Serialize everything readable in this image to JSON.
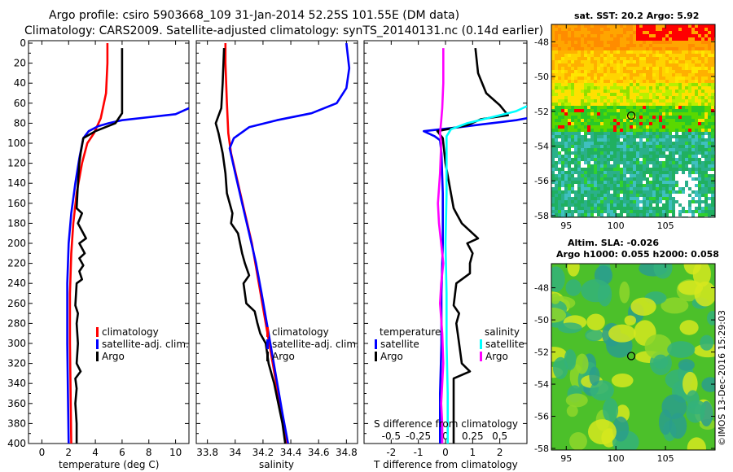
{
  "header": {
    "title_line1": "Argo profile: csiro 5903668_109 31-Jan-2014 52.25S 101.55E (DM data)",
    "title_line2": "Climatology: CARS2009. Satellite-adjusted climatology: synTS_20140131.nc (0.14d earlier)"
  },
  "depth_ticks": [
    "0",
    "20",
    "40",
    "60",
    "80",
    "100",
    "120",
    "140",
    "160",
    "180",
    "200",
    "220",
    "240",
    "260",
    "280",
    "300",
    "320",
    "340",
    "360",
    "380",
    "400"
  ],
  "colors": {
    "climatology": "#ff0000",
    "satellite": "#0000ff",
    "argo": "#000000",
    "sat_salinity": "#00ffff",
    "clim_salinity": "#ff00ff"
  },
  "chart_data": [
    {
      "type": "line",
      "name": "temperature-profile",
      "xlabel": "temperature (deg C)",
      "ylabel": "depth",
      "xlim": [
        -1,
        11
      ],
      "ylim": [
        400,
        0
      ],
      "x_ticks": [
        "0",
        "2",
        "4",
        "6",
        "8",
        "10"
      ],
      "x_tick_values": [
        0,
        2,
        4,
        6,
        8,
        10
      ],
      "legend": [
        "climatology",
        "satellite-adj. clim.",
        "Argo"
      ],
      "series": [
        {
          "name": "climatology",
          "color": "#ff0000",
          "points": [
            [
              4.9,
              0
            ],
            [
              4.9,
              20
            ],
            [
              4.8,
              50
            ],
            [
              4.4,
              75
            ],
            [
              3.9,
              90
            ],
            [
              3.4,
              100
            ],
            [
              3.0,
              120
            ],
            [
              2.6,
              150
            ],
            [
              2.35,
              180
            ],
            [
              2.2,
              210
            ],
            [
              2.1,
              250
            ],
            [
              2.1,
              300
            ],
            [
              2.15,
              350
            ],
            [
              2.2,
              400
            ]
          ]
        },
        {
          "name": "satellite-adj. clim.",
          "color": "#0000ff",
          "points": [
            [
              11,
              65
            ],
            [
              10,
              71
            ],
            [
              8,
              74
            ],
            [
              6,
              77
            ],
            [
              5,
              80
            ],
            [
              4.2,
              83
            ],
            [
              3.5,
              88
            ],
            [
              3.1,
              95
            ],
            [
              2.8,
              115
            ],
            [
              2.5,
              140
            ],
            [
              2.2,
              170
            ],
            [
              2.0,
              200
            ],
            [
              1.9,
              240
            ],
            [
              1.9,
              300
            ],
            [
              1.95,
              350
            ],
            [
              2.0,
              400
            ]
          ]
        },
        {
          "name": "Argo",
          "color": "#000000",
          "points": [
            [
              6.0,
              5
            ],
            [
              6.0,
              70
            ],
            [
              5.5,
              80
            ],
            [
              4.0,
              88
            ],
            [
              3.1,
              95
            ],
            [
              2.9,
              110
            ],
            [
              2.8,
              120
            ],
            [
              2.7,
              140
            ],
            [
              2.6,
              165
            ],
            [
              3.0,
              170
            ],
            [
              2.7,
              180
            ],
            [
              3.3,
              195
            ],
            [
              2.8,
              200
            ],
            [
              3.2,
              210
            ],
            [
              2.8,
              215
            ],
            [
              3.1,
              222
            ],
            [
              2.8,
              228
            ],
            [
              3.0,
              236
            ],
            [
              2.6,
              240
            ],
            [
              2.5,
              262
            ],
            [
              2.7,
              270
            ],
            [
              2.6,
              280
            ],
            [
              2.7,
              300
            ],
            [
              2.6,
              320
            ],
            [
              2.9,
              328
            ],
            [
              2.5,
              335
            ],
            [
              2.6,
              345
            ],
            [
              2.5,
              360
            ],
            [
              2.6,
              380
            ],
            [
              2.6,
              400
            ]
          ]
        }
      ]
    },
    {
      "type": "line",
      "name": "salinity-profile",
      "xlabel": "salinity",
      "ylabel": "depth",
      "xlim": [
        33.72,
        34.88
      ],
      "ylim": [
        400,
        0
      ],
      "x_ticks": [
        "33.8",
        "34",
        "34.2",
        "34.4",
        "34.6",
        "34.8"
      ],
      "x_tick_values": [
        33.8,
        34.0,
        34.2,
        34.4,
        34.6,
        34.8
      ],
      "legend": [
        "climatology",
        "satellite-adj. clim.",
        "Argo"
      ],
      "series": [
        {
          "name": "climatology",
          "color": "#ff0000",
          "points": [
            [
              33.93,
              0
            ],
            [
              33.93,
              20
            ],
            [
              33.94,
              60
            ],
            [
              33.95,
              90
            ],
            [
              33.97,
              110
            ],
            [
              34.02,
              140
            ],
            [
              34.07,
              170
            ],
            [
              34.12,
              200
            ],
            [
              34.17,
              240
            ],
            [
              34.22,
              280
            ],
            [
              34.27,
              320
            ],
            [
              34.32,
              360
            ],
            [
              34.37,
              400
            ]
          ]
        },
        {
          "name": "satellite-adj. clim.",
          "color": "#0000ff",
          "points": [
            [
              34.8,
              0
            ],
            [
              34.82,
              25
            ],
            [
              34.8,
              45
            ],
            [
              34.73,
              60
            ],
            [
              34.55,
              70
            ],
            [
              34.3,
              77
            ],
            [
              34.1,
              84
            ],
            [
              33.99,
              95
            ],
            [
              33.96,
              105
            ],
            [
              34.0,
              130
            ],
            [
              34.05,
              160
            ],
            [
              34.1,
              190
            ],
            [
              34.15,
              220
            ],
            [
              34.19,
              250
            ],
            [
              34.24,
              290
            ],
            [
              34.29,
              330
            ],
            [
              34.34,
              370
            ],
            [
              34.38,
              400
            ]
          ]
        },
        {
          "name": "Argo",
          "color": "#000000",
          "points": [
            [
              33.92,
              5
            ],
            [
              33.91,
              40
            ],
            [
              33.9,
              65
            ],
            [
              33.86,
              80
            ],
            [
              33.88,
              90
            ],
            [
              33.91,
              110
            ],
            [
              33.93,
              130
            ],
            [
              33.94,
              150
            ],
            [
              33.98,
              170
            ],
            [
              33.97,
              180
            ],
            [
              34.02,
              190
            ],
            [
              34.05,
              210
            ],
            [
              34.07,
              220
            ],
            [
              34.1,
              232
            ],
            [
              34.06,
              240
            ],
            [
              34.08,
              260
            ],
            [
              34.14,
              268
            ],
            [
              34.16,
              280
            ],
            [
              34.18,
              290
            ],
            [
              34.22,
              300
            ],
            [
              34.24,
              320
            ],
            [
              34.28,
              340
            ],
            [
              34.31,
              360
            ],
            [
              34.34,
              380
            ],
            [
              34.36,
              400
            ]
          ]
        }
      ]
    },
    {
      "type": "line",
      "name": "difference-profile",
      "xlabel": "T difference from climatology",
      "ylabel": "depth",
      "xlim": [
        -3,
        3
      ],
      "ylim": [
        400,
        0
      ],
      "x_ticks": [
        "-2",
        "-1",
        "0",
        "1",
        "2"
      ],
      "x_tick_values": [
        -2,
        -1,
        0,
        1,
        2
      ],
      "top_xlabel": "S difference from climatology",
      "s_xlim": [
        -0.75,
        0.75
      ],
      "s_ticks": [
        "-0.5",
        "-0.25",
        "0",
        "0.25",
        "0.5"
      ],
      "s_tick_values": [
        -0.5,
        -0.25,
        0,
        0.25,
        0.5
      ],
      "legend_temperature": [
        "temperature",
        "satellite",
        "Argo"
      ],
      "legend_salinity": [
        "salinity",
        "satellite",
        "Argo"
      ],
      "series": [
        {
          "name": "T satellite",
          "color": "#0000ff",
          "points": [
            [
              3,
              75
            ],
            [
              2.6,
              77
            ],
            [
              2.0,
              79
            ],
            [
              1.4,
              81
            ],
            [
              0.5,
              84
            ],
            [
              -0.8,
              88
            ],
            [
              -0.4,
              93
            ],
            [
              -0.2,
              97
            ],
            [
              -0.15,
              110
            ],
            [
              -0.1,
              150
            ],
            [
              -0.1,
              200
            ],
            [
              -0.15,
              250
            ],
            [
              -0.15,
              300
            ],
            [
              -0.2,
              350
            ],
            [
              -0.2,
              400
            ]
          ]
        },
        {
          "name": "T Argo",
          "color": "#000000",
          "points": [
            [
              1.1,
              5
            ],
            [
              1.2,
              30
            ],
            [
              1.5,
              50
            ],
            [
              2.0,
              62
            ],
            [
              2.3,
              72
            ],
            [
              1.3,
              76
            ],
            [
              0.8,
              82
            ],
            [
              -0.3,
              88
            ],
            [
              -0.1,
              95
            ],
            [
              0.0,
              120
            ],
            [
              0.3,
              165
            ],
            [
              0.4,
              170
            ],
            [
              0.6,
              180
            ],
            [
              1.2,
              195
            ],
            [
              0.8,
              200
            ],
            [
              1.0,
              210
            ],
            [
              0.9,
              220
            ],
            [
              0.9,
              230
            ],
            [
              0.4,
              240
            ],
            [
              0.3,
              262
            ],
            [
              0.5,
              270
            ],
            [
              0.4,
              280
            ],
            [
              0.5,
              300
            ],
            [
              0.6,
              320
            ],
            [
              0.9,
              328
            ],
            [
              0.3,
              335
            ],
            [
              0.3,
              345
            ],
            [
              0.3,
              360
            ],
            [
              0.3,
              380
            ],
            [
              0.3,
              400
            ]
          ]
        },
        {
          "name": "S satellite",
          "color": "#00ffff",
          "points": [
            [
              0.75,
              63
            ],
            [
              0.65,
              68
            ],
            [
              0.5,
              72
            ],
            [
              0.35,
              76
            ],
            [
              0.2,
              80
            ],
            [
              0.05,
              86
            ],
            [
              0.01,
              93
            ],
            [
              0.01,
              110
            ],
            [
              0.01,
              150
            ],
            [
              0.0,
              200
            ],
            [
              0.01,
              250
            ],
            [
              0.01,
              300
            ],
            [
              0.02,
              350
            ],
            [
              0.02,
              400
            ]
          ]
        },
        {
          "name": "S Argo",
          "color": "#ff00ff",
          "points": [
            [
              -0.02,
              5
            ],
            [
              -0.02,
              40
            ],
            [
              -0.03,
              65
            ],
            [
              -0.04,
              78
            ],
            [
              -0.05,
              90
            ],
            [
              -0.04,
              100
            ],
            [
              -0.05,
              130
            ],
            [
              -0.07,
              160
            ],
            [
              -0.06,
              180
            ],
            [
              -0.04,
              200
            ],
            [
              -0.02,
              220
            ],
            [
              -0.04,
              240
            ],
            [
              -0.05,
              260
            ],
            [
              -0.03,
              290
            ],
            [
              -0.02,
              320
            ],
            [
              -0.03,
              340
            ],
            [
              -0.04,
              360
            ],
            [
              -0.03,
              380
            ],
            [
              -0.03,
              400
            ]
          ]
        }
      ]
    }
  ],
  "map_sst": {
    "title": "sat. SST: 20.2 Argo: 5.92",
    "lat_ticks": [
      "-48",
      "-50",
      "-52",
      "-54",
      "-56",
      "-58"
    ],
    "lat_values": [
      -48,
      -50,
      -52,
      -54,
      -56,
      -58
    ],
    "lon_ticks": [
      "95",
      "100",
      "105"
    ],
    "lon_values": [
      95,
      100,
      105
    ],
    "lon_range": [
      93.5,
      110
    ],
    "lat_range": [
      -47,
      -58.1
    ],
    "marker": {
      "lon": 101.55,
      "lat": -52.25
    }
  },
  "map_sla": {
    "title1": "Altim. SLA: -0.026",
    "title2": "Argo h1000: 0.055 h2000: 0.058",
    "lat_ticks": [
      "-48",
      "-50",
      "-52",
      "-54",
      "-56",
      "-58"
    ],
    "lat_values": [
      -48,
      -50,
      -52,
      -54,
      -56,
      -58
    ],
    "lon_ticks": [
      "95",
      "100",
      "105"
    ],
    "lon_values": [
      95,
      100,
      105
    ],
    "lon_range": [
      93.5,
      110
    ],
    "lat_range": [
      -46.5,
      -58.1
    ],
    "marker": {
      "lon": 101.55,
      "lat": -52.25
    }
  },
  "credit": "©IMOS 13-Dec-2016 15:29:03"
}
